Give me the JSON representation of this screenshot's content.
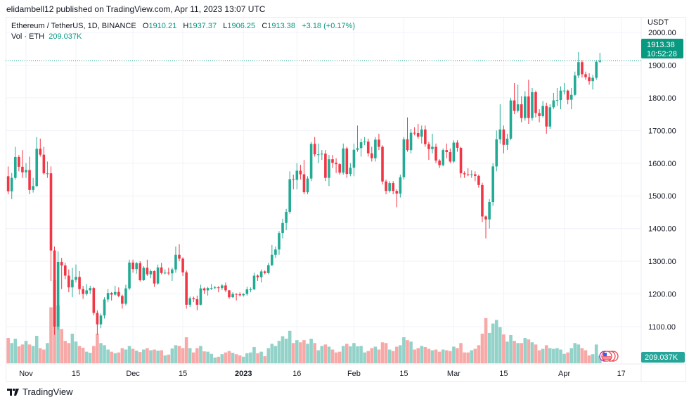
{
  "publisher_line": "elidambell12 published on TradingView.com, Apr 11, 2023 13:07 UTC",
  "legend": {
    "symbol": "Ethereum / TetherUS, 1D, BINANCE",
    "o_label": "O",
    "o": "1910.21",
    "h_label": "H",
    "h": "1937.37",
    "l_label": "L",
    "l": "1906.25",
    "c_label": "C",
    "c": "1913.38",
    "change": "+3.18 (+0.17%)",
    "vol_label": "Vol · ETH",
    "vol": "209.037K"
  },
  "footer": {
    "brand": "TradingView"
  },
  "colors": {
    "up": "#22ab94",
    "down": "#f23645",
    "vol_up": "#93d2c9",
    "vol_down": "#f7a9a7",
    "last_price_bg": "#089981"
  },
  "chart_data": {
    "type": "candlestick",
    "currency": "USDT",
    "y_ticks": [
      "2000.00",
      "1900.00",
      "1800.00",
      "1700.00",
      "1600.00",
      "1500.00",
      "1400.00",
      "1300.00",
      "1200.00",
      "1100.00"
    ],
    "x_ticks": [
      {
        "label": "Nov",
        "date": "2022-11-01"
      },
      {
        "label": "15",
        "date": "2022-11-15"
      },
      {
        "label": "Dec",
        "date": "2022-12-01"
      },
      {
        "label": "15",
        "date": "2022-12-15"
      },
      {
        "label": "2023",
        "date": "2023-01-01"
      },
      {
        "label": "16",
        "date": "2023-01-16"
      },
      {
        "label": "Feb",
        "date": "2023-02-01"
      },
      {
        "label": "15",
        "date": "2023-02-15"
      },
      {
        "label": "Mar",
        "date": "2023-03-01"
      },
      {
        "label": "15",
        "date": "2023-03-15"
      },
      {
        "label": "Apr",
        "date": "2023-04-01"
      },
      {
        "label": "17",
        "date": "2023-04-17"
      }
    ],
    "ylim": [
      1020,
      2040
    ],
    "last_price": "1913.38",
    "countdown": "10:52:28",
    "last_volume": "209.037K",
    "columns": [
      "date",
      "open",
      "high",
      "low",
      "close",
      "volume_k"
    ],
    "candles": [
      [
        "2022-10-27",
        1560,
        1590,
        1505,
        1514,
        700
      ],
      [
        "2022-10-28",
        1514,
        1570,
        1490,
        1555,
        560
      ],
      [
        "2022-10-29",
        1555,
        1650,
        1550,
        1619,
        680
      ],
      [
        "2022-10-30",
        1619,
        1625,
        1575,
        1589,
        470
      ],
      [
        "2022-10-31",
        1589,
        1640,
        1555,
        1572,
        520
      ],
      [
        "2022-11-01",
        1572,
        1600,
        1555,
        1579,
        620
      ],
      [
        "2022-11-02",
        1579,
        1620,
        1505,
        1518,
        520
      ],
      [
        "2022-11-03",
        1518,
        1555,
        1510,
        1530,
        480
      ],
      [
        "2022-11-04",
        1530,
        1680,
        1528,
        1644,
        760
      ],
      [
        "2022-11-05",
        1644,
        1675,
        1620,
        1626,
        420
      ],
      [
        "2022-11-06",
        1626,
        1650,
        1565,
        1569,
        380
      ],
      [
        "2022-11-07",
        1569,
        1605,
        1555,
        1569,
        560
      ],
      [
        "2022-11-08",
        1569,
        1590,
        1240,
        1333,
        1550
      ],
      [
        "2022-11-09",
        1333,
        1345,
        1075,
        1100,
        2300
      ],
      [
        "2022-11-10",
        1100,
        1330,
        1090,
        1298,
        1600
      ],
      [
        "2022-11-11",
        1298,
        1310,
        1215,
        1287,
        950
      ],
      [
        "2022-11-12",
        1287,
        1295,
        1245,
        1256,
        620
      ],
      [
        "2022-11-13",
        1256,
        1275,
        1205,
        1220,
        560
      ],
      [
        "2022-11-14",
        1220,
        1280,
        1190,
        1243,
        820
      ],
      [
        "2022-11-15",
        1243,
        1290,
        1235,
        1252,
        600
      ],
      [
        "2022-11-16",
        1252,
        1270,
        1198,
        1215,
        480
      ],
      [
        "2022-11-17",
        1215,
        1225,
        1185,
        1200,
        430
      ],
      [
        "2022-11-18",
        1200,
        1230,
        1195,
        1211,
        320
      ],
      [
        "2022-11-19",
        1211,
        1225,
        1200,
        1218,
        290
      ],
      [
        "2022-11-20",
        1218,
        1222,
        1135,
        1142,
        480
      ],
      [
        "2022-11-21",
        1142,
        1150,
        1075,
        1107,
        820
      ],
      [
        "2022-11-22",
        1107,
        1140,
        1095,
        1134,
        560
      ],
      [
        "2022-11-23",
        1134,
        1190,
        1125,
        1183,
        500
      ],
      [
        "2022-11-24",
        1183,
        1215,
        1175,
        1203,
        380
      ],
      [
        "2022-11-25",
        1203,
        1206,
        1180,
        1198,
        320
      ],
      [
        "2022-11-26",
        1198,
        1225,
        1195,
        1206,
        280
      ],
      [
        "2022-11-27",
        1206,
        1220,
        1190,
        1194,
        300
      ],
      [
        "2022-11-28",
        1194,
        1198,
        1155,
        1170,
        420
      ],
      [
        "2022-11-29",
        1170,
        1228,
        1165,
        1217,
        380
      ],
      [
        "2022-11-30",
        1217,
        1305,
        1212,
        1296,
        480
      ],
      [
        "2022-12-01",
        1296,
        1305,
        1265,
        1276,
        400
      ],
      [
        "2022-12-02",
        1276,
        1298,
        1262,
        1294,
        350
      ],
      [
        "2022-12-03",
        1294,
        1300,
        1238,
        1242,
        310
      ],
      [
        "2022-12-04",
        1242,
        1285,
        1240,
        1280,
        380
      ],
      [
        "2022-12-05",
        1280,
        1305,
        1255,
        1260,
        420
      ],
      [
        "2022-12-06",
        1260,
        1275,
        1248,
        1270,
        360
      ],
      [
        "2022-12-07",
        1270,
        1272,
        1222,
        1232,
        380
      ],
      [
        "2022-12-08",
        1232,
        1290,
        1228,
        1281,
        350
      ],
      [
        "2022-12-09",
        1281,
        1295,
        1260,
        1264,
        360
      ],
      [
        "2022-12-10",
        1264,
        1275,
        1260,
        1265,
        220
      ],
      [
        "2022-12-11",
        1265,
        1280,
        1258,
        1263,
        240
      ],
      [
        "2022-12-12",
        1263,
        1280,
        1240,
        1275,
        410
      ],
      [
        "2022-12-13",
        1275,
        1345,
        1265,
        1320,
        500
      ],
      [
        "2022-12-14",
        1320,
        1352,
        1300,
        1308,
        480
      ],
      [
        "2022-12-15",
        1308,
        1312,
        1255,
        1266,
        420
      ],
      [
        "2022-12-16",
        1266,
        1272,
        1155,
        1167,
        720
      ],
      [
        "2022-12-17",
        1167,
        1192,
        1160,
        1187,
        420
      ],
      [
        "2022-12-18",
        1187,
        1192,
        1175,
        1184,
        300
      ],
      [
        "2022-12-19",
        1184,
        1195,
        1150,
        1167,
        420
      ],
      [
        "2022-12-20",
        1167,
        1228,
        1165,
        1217,
        480
      ],
      [
        "2022-12-21",
        1217,
        1220,
        1200,
        1211,
        330
      ],
      [
        "2022-12-22",
        1211,
        1222,
        1195,
        1218,
        320
      ],
      [
        "2022-12-23",
        1218,
        1230,
        1212,
        1218,
        260
      ],
      [
        "2022-12-24",
        1218,
        1225,
        1215,
        1220,
        160
      ],
      [
        "2022-12-25",
        1220,
        1224,
        1205,
        1218,
        180
      ],
      [
        "2022-12-26",
        1218,
        1230,
        1212,
        1226,
        250
      ],
      [
        "2022-12-27",
        1226,
        1235,
        1205,
        1211,
        300
      ],
      [
        "2022-12-28",
        1211,
        1212,
        1185,
        1190,
        340
      ],
      [
        "2022-12-29",
        1190,
        1205,
        1188,
        1200,
        290
      ],
      [
        "2022-12-30",
        1200,
        1202,
        1180,
        1199,
        250
      ],
      [
        "2022-12-31",
        1199,
        1205,
        1192,
        1196,
        220
      ],
      [
        "2023-01-01",
        1196,
        1202,
        1192,
        1200,
        180
      ],
      [
        "2023-01-02",
        1200,
        1222,
        1195,
        1214,
        280
      ],
      [
        "2023-01-03",
        1214,
        1220,
        1205,
        1214,
        300
      ],
      [
        "2023-01-04",
        1214,
        1265,
        1212,
        1256,
        450
      ],
      [
        "2023-01-05",
        1256,
        1260,
        1240,
        1251,
        280
      ],
      [
        "2023-01-06",
        1251,
        1275,
        1235,
        1269,
        320
      ],
      [
        "2023-01-07",
        1269,
        1272,
        1260,
        1264,
        200
      ],
      [
        "2023-01-08",
        1264,
        1295,
        1260,
        1288,
        420
      ],
      [
        "2023-01-09",
        1288,
        1350,
        1285,
        1320,
        540
      ],
      [
        "2023-01-10",
        1320,
        1345,
        1310,
        1336,
        480
      ],
      [
        "2023-01-11",
        1336,
        1392,
        1320,
        1386,
        620
      ],
      [
        "2023-01-12",
        1386,
        1430,
        1370,
        1417,
        750
      ],
      [
        "2023-01-13",
        1417,
        1460,
        1395,
        1451,
        680
      ],
      [
        "2023-01-14",
        1451,
        1575,
        1445,
        1551,
        900
      ],
      [
        "2023-01-15",
        1551,
        1565,
        1520,
        1549,
        560
      ],
      [
        "2023-01-16",
        1549,
        1600,
        1520,
        1577,
        640
      ],
      [
        "2023-01-17",
        1577,
        1595,
        1550,
        1566,
        580
      ],
      [
        "2023-01-18",
        1566,
        1610,
        1505,
        1511,
        640
      ],
      [
        "2023-01-19",
        1511,
        1560,
        1505,
        1553,
        540
      ],
      [
        "2023-01-20",
        1553,
        1665,
        1545,
        1659,
        680
      ],
      [
        "2023-01-21",
        1659,
        1680,
        1620,
        1627,
        560
      ],
      [
        "2023-01-22",
        1627,
        1660,
        1600,
        1627,
        360
      ],
      [
        "2023-01-23",
        1627,
        1640,
        1610,
        1629,
        480
      ],
      [
        "2023-01-24",
        1629,
        1640,
        1545,
        1555,
        520
      ],
      [
        "2023-01-25",
        1555,
        1625,
        1530,
        1612,
        460
      ],
      [
        "2023-01-26",
        1612,
        1625,
        1585,
        1601,
        380
      ],
      [
        "2023-01-27",
        1601,
        1615,
        1570,
        1597,
        300
      ],
      [
        "2023-01-28",
        1597,
        1600,
        1565,
        1571,
        320
      ],
      [
        "2023-01-29",
        1571,
        1660,
        1565,
        1645,
        480
      ],
      [
        "2023-01-30",
        1645,
        1650,
        1555,
        1567,
        540
      ],
      [
        "2023-01-31",
        1567,
        1600,
        1560,
        1586,
        470
      ],
      [
        "2023-02-01",
        1586,
        1660,
        1560,
        1641,
        560
      ],
      [
        "2023-02-02",
        1641,
        1715,
        1635,
        1646,
        470
      ],
      [
        "2023-02-03",
        1646,
        1675,
        1620,
        1664,
        480
      ],
      [
        "2023-02-04",
        1664,
        1680,
        1655,
        1666,
        300
      ],
      [
        "2023-02-05",
        1666,
        1675,
        1620,
        1630,
        340
      ],
      [
        "2023-02-06",
        1630,
        1650,
        1605,
        1615,
        420
      ],
      [
        "2023-02-07",
        1615,
        1680,
        1605,
        1672,
        460
      ],
      [
        "2023-02-08",
        1672,
        1690,
        1640,
        1650,
        380
      ],
      [
        "2023-02-09",
        1650,
        1655,
        1535,
        1544,
        580
      ],
      [
        "2023-02-10",
        1544,
        1550,
        1505,
        1515,
        560
      ],
      [
        "2023-02-11",
        1515,
        1545,
        1510,
        1539,
        380
      ],
      [
        "2023-02-12",
        1539,
        1545,
        1505,
        1515,
        340
      ],
      [
        "2023-02-13",
        1515,
        1520,
        1465,
        1507,
        460
      ],
      [
        "2023-02-14",
        1507,
        1565,
        1495,
        1557,
        500
      ],
      [
        "2023-02-15",
        1557,
        1680,
        1550,
        1673,
        720
      ],
      [
        "2023-02-16",
        1673,
        1740,
        1635,
        1640,
        640
      ],
      [
        "2023-02-17",
        1640,
        1705,
        1630,
        1693,
        600
      ],
      [
        "2023-02-18",
        1693,
        1710,
        1685,
        1692,
        380
      ],
      [
        "2023-02-19",
        1692,
        1720,
        1675,
        1681,
        420
      ],
      [
        "2023-02-20",
        1681,
        1715,
        1660,
        1703,
        480
      ],
      [
        "2023-02-21",
        1703,
        1715,
        1650,
        1658,
        450
      ],
      [
        "2023-02-22",
        1658,
        1665,
        1610,
        1643,
        400
      ],
      [
        "2023-02-23",
        1643,
        1690,
        1630,
        1650,
        360
      ],
      [
        "2023-02-24",
        1650,
        1660,
        1600,
        1608,
        380
      ],
      [
        "2023-02-25",
        1608,
        1612,
        1585,
        1594,
        320
      ],
      [
        "2023-02-26",
        1594,
        1645,
        1590,
        1640,
        380
      ],
      [
        "2023-02-27",
        1640,
        1660,
        1615,
        1634,
        360
      ],
      [
        "2023-02-28",
        1634,
        1645,
        1600,
        1605,
        340
      ],
      [
        "2023-03-01",
        1605,
        1670,
        1600,
        1663,
        460
      ],
      [
        "2023-03-02",
        1663,
        1670,
        1635,
        1647,
        420
      ],
      [
        "2023-03-03",
        1647,
        1650,
        1555,
        1569,
        560
      ],
      [
        "2023-03-04",
        1569,
        1575,
        1555,
        1566,
        300
      ],
      [
        "2023-03-05",
        1566,
        1585,
        1560,
        1564,
        300
      ],
      [
        "2023-03-06",
        1564,
        1578,
        1555,
        1566,
        360
      ],
      [
        "2023-03-07",
        1566,
        1575,
        1545,
        1561,
        400
      ],
      [
        "2023-03-08",
        1561,
        1565,
        1525,
        1533,
        500
      ],
      [
        "2023-03-09",
        1533,
        1540,
        1420,
        1437,
        820
      ],
      [
        "2023-03-10",
        1437,
        1440,
        1370,
        1428,
        1250
      ],
      [
        "2023-03-11",
        1428,
        1490,
        1400,
        1481,
        840
      ],
      [
        "2023-03-12",
        1481,
        1600,
        1470,
        1590,
        1100
      ],
      [
        "2023-03-13",
        1590,
        1700,
        1575,
        1673,
        1200
      ],
      [
        "2023-03-14",
        1673,
        1780,
        1660,
        1703,
        1000
      ],
      [
        "2023-03-15",
        1703,
        1715,
        1630,
        1656,
        800
      ],
      [
        "2023-03-16",
        1656,
        1690,
        1640,
        1675,
        600
      ],
      [
        "2023-03-17",
        1675,
        1800,
        1670,
        1792,
        780
      ],
      [
        "2023-03-18",
        1792,
        1845,
        1750,
        1760,
        620
      ],
      [
        "2023-03-19",
        1760,
        1840,
        1755,
        1780,
        560
      ],
      [
        "2023-03-20",
        1780,
        1805,
        1725,
        1738,
        560
      ],
      [
        "2023-03-21",
        1738,
        1820,
        1730,
        1804,
        700
      ],
      [
        "2023-03-22",
        1804,
        1855,
        1720,
        1738,
        660
      ],
      [
        "2023-03-23",
        1738,
        1830,
        1730,
        1817,
        580
      ],
      [
        "2023-03-24",
        1817,
        1822,
        1740,
        1753,
        520
      ],
      [
        "2023-03-25",
        1753,
        1765,
        1725,
        1744,
        360
      ],
      [
        "2023-03-26",
        1744,
        1790,
        1740,
        1775,
        400
      ],
      [
        "2023-03-27",
        1775,
        1785,
        1690,
        1712,
        500
      ],
      [
        "2023-03-28",
        1712,
        1780,
        1705,
        1771,
        420
      ],
      [
        "2023-03-29",
        1771,
        1815,
        1765,
        1792,
        400
      ],
      [
        "2023-03-30",
        1792,
        1830,
        1775,
        1793,
        420
      ],
      [
        "2023-03-31",
        1793,
        1835,
        1765,
        1822,
        380
      ],
      [
        "2023-04-01",
        1822,
        1845,
        1810,
        1822,
        260
      ],
      [
        "2023-04-02",
        1822,
        1825,
        1780,
        1794,
        300
      ],
      [
        "2023-04-03",
        1794,
        1830,
        1765,
        1809,
        420
      ],
      [
        "2023-04-04",
        1809,
        1880,
        1805,
        1868,
        560
      ],
      [
        "2023-04-05",
        1868,
        1940,
        1860,
        1909,
        520
      ],
      [
        "2023-04-06",
        1909,
        1915,
        1862,
        1872,
        420
      ],
      [
        "2023-04-07",
        1872,
        1880,
        1855,
        1863,
        360
      ],
      [
        "2023-04-08",
        1863,
        1875,
        1840,
        1851,
        220
      ],
      [
        "2023-04-09",
        1851,
        1870,
        1825,
        1861,
        250
      ],
      [
        "2023-04-10",
        1861,
        1915,
        1855,
        1910,
        520
      ],
      [
        "2023-04-11",
        1910.21,
        1937.37,
        1906.25,
        1913.38,
        209.037
      ]
    ]
  }
}
